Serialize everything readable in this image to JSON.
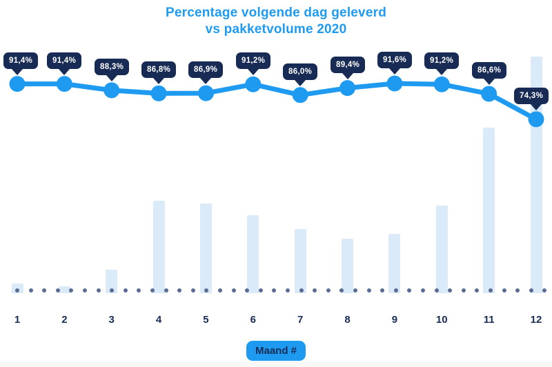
{
  "title": {
    "line1": "Percentage volgende dag geleverd",
    "line2": "vs pakketvolume 2020"
  },
  "xaxis": {
    "label": "Maand #",
    "tick_labels": [
      "1",
      "2",
      "3",
      "4",
      "5",
      "6",
      "7",
      "8",
      "9",
      "10",
      "11",
      "12"
    ]
  },
  "colors": {
    "accent_blue": "#1E9BF0",
    "title_blue": "#1E9BF0",
    "tooltip_navy": "#182B54",
    "axis_navy": "#182B54",
    "bar_fill": "#DBEAF9",
    "baseline_dot": "#5A6B94",
    "bottom_strip": "#F7F8F8"
  },
  "chart_data": {
    "type": "line",
    "combo_with": "bar",
    "title": "Percentage volgende dag geleverd vs pakketvolume 2020",
    "xlabel": "Maand #",
    "categories": [
      1,
      2,
      3,
      4,
      5,
      6,
      7,
      8,
      9,
      10,
      11,
      12
    ],
    "grid": false,
    "legend_position": "none",
    "series": [
      {
        "name": "Percentage volgende dag geleverd",
        "type": "line",
        "unit": "%",
        "values": [
          91.4,
          91.4,
          88.3,
          86.8,
          86.9,
          91.2,
          86.0,
          89.4,
          91.6,
          91.2,
          86.6,
          74.3
        ],
        "labels": [
          "91,4%",
          "91,4%",
          "88,3%",
          "86,8%",
          "86,9%",
          "91,2%",
          "86,0%",
          "89,4%",
          "91,6%",
          "91,2%",
          "86,6%",
          "74,3%"
        ]
      },
      {
        "name": "Pakketvolume 2020",
        "type": "bar",
        "unit": "relative index (tallest bar = 100, y-axis unlabeled)",
        "values": [
          4,
          3,
          10,
          39,
          38,
          33,
          27,
          23,
          25,
          37,
          70,
          100
        ]
      }
    ]
  }
}
